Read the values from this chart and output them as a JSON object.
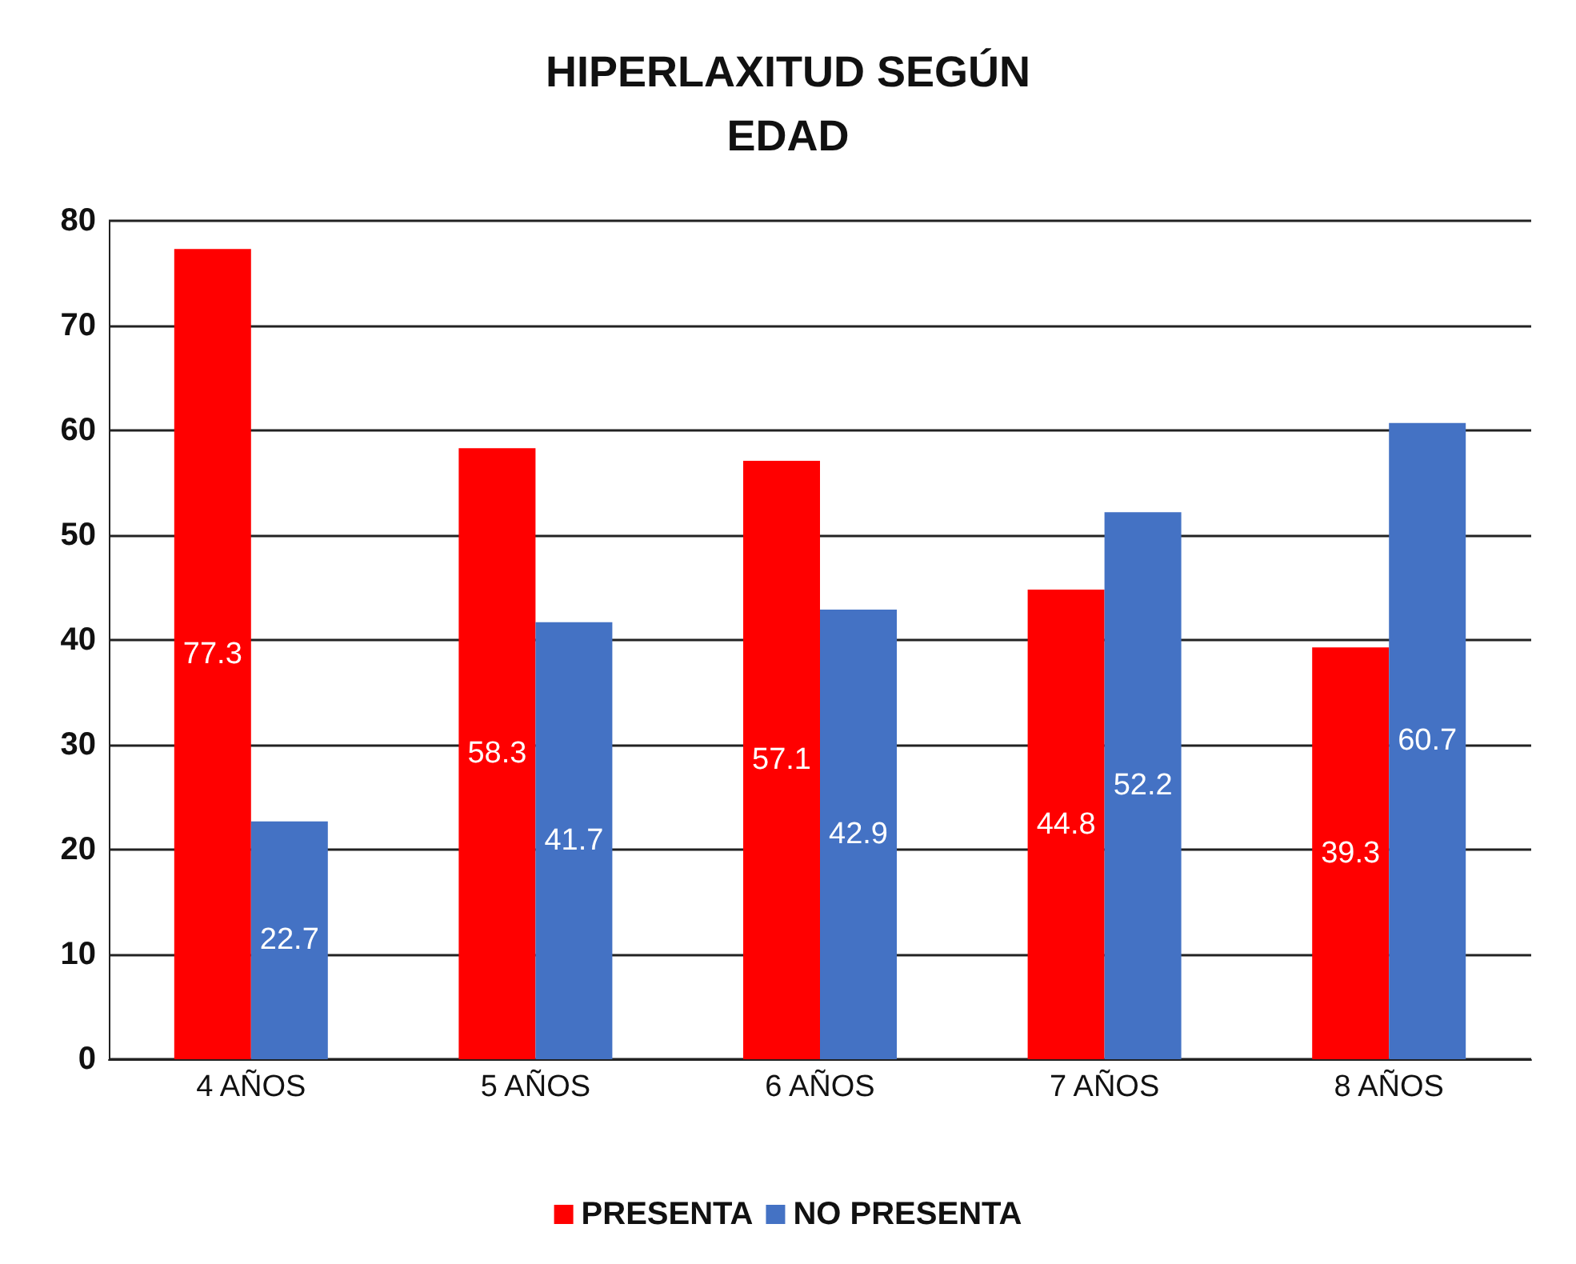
{
  "chart_data": {
    "type": "bar",
    "title": "HIPERLAXITUD SEGÚN\nEDAD",
    "categories": [
      "4 AÑOS",
      "5 AÑOS",
      "6 AÑOS",
      "7 AÑOS",
      "8 AÑOS"
    ],
    "series": [
      {
        "name": "PRESENTA",
        "color": "#ff0000",
        "values": [
          77.3,
          58.3,
          57.1,
          44.8,
          39.3
        ]
      },
      {
        "name": "NO PRESENTA",
        "color": "#4472c4",
        "values": [
          22.7,
          41.7,
          42.9,
          52.2,
          60.7
        ]
      }
    ],
    "ylim": [
      0,
      80
    ],
    "yticks": [
      0,
      10,
      20,
      30,
      40,
      50,
      60,
      70,
      80
    ],
    "grid": "y",
    "legend": "bottom",
    "data_labels": true
  }
}
